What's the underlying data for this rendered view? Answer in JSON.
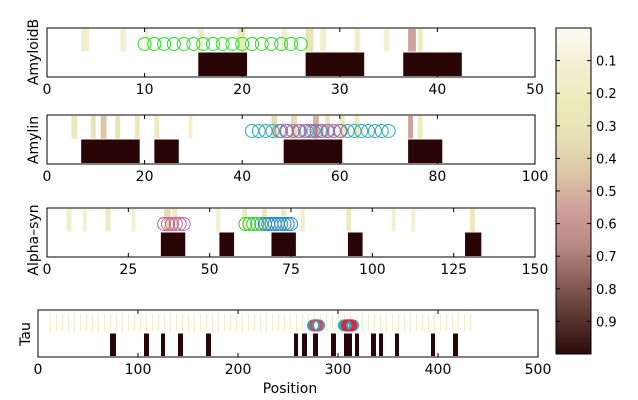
{
  "chart_data": [
    {
      "type": "heatmap",
      "ylabel": "AmyloidB",
      "xlim": [
        0,
        50
      ],
      "xticks": [
        0,
        10,
        20,
        30,
        40,
        50
      ],
      "ylim": [
        0,
        1
      ],
      "segments": [
        [
          15.5,
          20.5
        ],
        [
          26.5,
          32.5
        ],
        [
          36.5,
          42.5
        ]
      ],
      "bands": [
        {
          "x": 3.5,
          "w": 0.8,
          "v": 0.15
        },
        {
          "x": 7.5,
          "w": 0.6,
          "v": 0.12
        },
        {
          "x": 10,
          "w": 0.4,
          "v": 0.15
        },
        {
          "x": 15.5,
          "w": 0.6,
          "v": 0.15
        },
        {
          "x": 19.5,
          "w": 0.8,
          "v": 0.25
        },
        {
          "x": 24,
          "w": 0.6,
          "v": 0.12
        },
        {
          "x": 26.5,
          "w": 0.8,
          "v": 0.3
        },
        {
          "x": 28,
          "w": 0.6,
          "v": 0.15
        },
        {
          "x": 31.5,
          "w": 0.6,
          "v": 0.15
        },
        {
          "x": 34.5,
          "w": 0.6,
          "v": 0.12
        },
        {
          "x": 37,
          "w": 0.8,
          "v": 0.55
        },
        {
          "x": 38,
          "w": 0.5,
          "v": 0.2
        }
      ],
      "hotspots": [
        {
          "x0": 10,
          "x1": 26,
          "step": 1,
          "color": "#22dd22"
        }
      ]
    },
    {
      "type": "heatmap",
      "ylabel": "Amylin",
      "xlim": [
        0,
        100
      ],
      "xticks": [
        0,
        20,
        40,
        60,
        80,
        100
      ],
      "ylim": [
        0,
        1
      ],
      "segments": [
        [
          7,
          19
        ],
        [
          22,
          27
        ],
        [
          48.5,
          60.5
        ],
        [
          74,
          81
        ]
      ],
      "bands": [
        {
          "x": 5,
          "w": 1.2,
          "v": 0.25
        },
        {
          "x": 9,
          "w": 1.0,
          "v": 0.3
        },
        {
          "x": 11,
          "w": 1.2,
          "v": 0.45
        },
        {
          "x": 14,
          "w": 1.0,
          "v": 0.3
        },
        {
          "x": 18,
          "w": 1.0,
          "v": 0.25
        },
        {
          "x": 22,
          "w": 1.0,
          "v": 0.2
        },
        {
          "x": 29,
          "w": 0.8,
          "v": 0.15
        },
        {
          "x": 46,
          "w": 1.2,
          "v": 0.35
        },
        {
          "x": 50,
          "w": 1.2,
          "v": 0.35
        },
        {
          "x": 54.5,
          "w": 1.2,
          "v": 0.5
        },
        {
          "x": 57,
          "w": 1.0,
          "v": 0.3
        },
        {
          "x": 60,
          "w": 1.0,
          "v": 0.25
        },
        {
          "x": 63,
          "w": 1.0,
          "v": 0.2
        },
        {
          "x": 74,
          "w": 1.0,
          "v": 0.55
        },
        {
          "x": 76,
          "w": 1.0,
          "v": 0.2
        }
      ],
      "hotspots": [
        {
          "x0": 42,
          "x1": 70,
          "step": 1.4,
          "color": "#2aa8b0"
        },
        {
          "x0": 48,
          "x1": 60,
          "step": 1.2,
          "color": "#c060a0"
        }
      ]
    },
    {
      "type": "heatmap",
      "ylabel": "Alpha–syn",
      "xlim": [
        0,
        150
      ],
      "xticks": [
        0,
        25,
        50,
        75,
        100,
        125,
        150
      ],
      "ylim": [
        0,
        1
      ],
      "segments": [
        [
          35,
          42.5
        ],
        [
          53,
          57.5
        ],
        [
          69,
          76.5
        ],
        [
          92.5,
          97
        ],
        [
          128.5,
          133.5
        ]
      ],
      "bands": [
        {
          "x": 6,
          "w": 1.5,
          "v": 0.15
        },
        {
          "x": 11,
          "w": 1.2,
          "v": 0.12
        },
        {
          "x": 18,
          "w": 1.5,
          "v": 0.2
        },
        {
          "x": 26,
          "w": 1.2,
          "v": 0.12
        },
        {
          "x": 36,
          "w": 2.0,
          "v": 0.35
        },
        {
          "x": 38.5,
          "w": 1.5,
          "v": 0.25
        },
        {
          "x": 52,
          "w": 1.2,
          "v": 0.15
        },
        {
          "x": 60,
          "w": 1.5,
          "v": 0.2
        },
        {
          "x": 66,
          "w": 1.5,
          "v": 0.25
        },
        {
          "x": 72,
          "w": 1.5,
          "v": 0.2
        },
        {
          "x": 78,
          "w": 1.2,
          "v": 0.15
        },
        {
          "x": 92,
          "w": 1.5,
          "v": 0.2
        },
        {
          "x": 106,
          "w": 1.2,
          "v": 0.12
        },
        {
          "x": 112,
          "w": 1.2,
          "v": 0.12
        },
        {
          "x": 130,
          "w": 1.5,
          "v": 0.25
        }
      ],
      "hotspots": [
        {
          "x0": 36,
          "x1": 42,
          "step": 1.2,
          "color": "#c060a0"
        },
        {
          "x0": 61,
          "x1": 68,
          "step": 1.2,
          "color": "#33cc33"
        },
        {
          "x0": 67,
          "x1": 75,
          "step": 1.0,
          "color": "#2288cc"
        }
      ]
    },
    {
      "type": "heatmap",
      "ylabel": "Tau",
      "xlim": [
        0,
        500
      ],
      "xticks": [
        0,
        100,
        200,
        300,
        400,
        500
      ],
      "xlabel": "Position",
      "ylim": [
        0,
        1
      ],
      "segments": [
        [
          72,
          78
        ],
        [
          106,
          111
        ],
        [
          123,
          127
        ],
        [
          140,
          145
        ],
        [
          168,
          173
        ],
        [
          256,
          260
        ],
        [
          264,
          269
        ],
        [
          275,
          280
        ],
        [
          293,
          298
        ],
        [
          306,
          314
        ],
        [
          317,
          321
        ],
        [
          333,
          338
        ],
        [
          341,
          345
        ],
        [
          357,
          361
        ],
        [
          393,
          397
        ],
        [
          415,
          420
        ]
      ],
      "band_range": [
        12,
        436
      ],
      "band_step": 6,
      "band_v": 0.12,
      "hotspots": [
        {
          "x0": 275,
          "x1": 281,
          "step": 1,
          "color": "#2aa8b0"
        },
        {
          "x0": 277,
          "x1": 279,
          "step": 1,
          "color": "#e04070"
        },
        {
          "x0": 306,
          "x1": 315,
          "step": 1,
          "color": "#2aa8b0"
        },
        {
          "x0": 309,
          "x1": 313,
          "step": 1,
          "color": "#e02040"
        }
      ]
    }
  ],
  "colorbar": {
    "ticks": [
      "0.1",
      "0.2",
      "0.3",
      "0.4",
      "0.5",
      "0.6",
      "0.7",
      "0.8",
      "0.9"
    ],
    "range": [
      0,
      1
    ],
    "stops": [
      "#fbfbf4",
      "#f3f0d4",
      "#ecebbc",
      "#e8e0b4",
      "#dcc6a4",
      "#cfa09a",
      "#b88a84",
      "#8a5e58",
      "#5a3530",
      "#2a0a0a"
    ]
  }
}
